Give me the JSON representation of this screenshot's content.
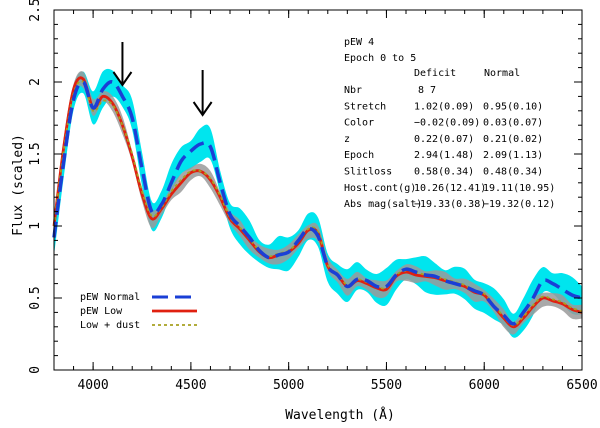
{
  "chart_data": {
    "type": "line",
    "title": "",
    "xlabel": "Wavelength (Å)",
    "ylabel": "Flux (scaled)",
    "xlim": [
      3800,
      6500
    ],
    "ylim": [
      0,
      2.5
    ],
    "x_ticks": [
      "4000",
      "4500",
      "5000",
      "5500",
      "6000",
      "6500"
    ],
    "y_ticks": [
      "0",
      "0.5",
      "1",
      "1.5",
      "2",
      "2.5"
    ],
    "arrow_wavelengths": [
      4150,
      4560
    ],
    "info": {
      "title": "pEW 4",
      "epoch": "Epoch 0 to 5",
      "col_deficit": "Deficit",
      "col_normal": "Normal",
      "rows": [
        {
          "label": "Nbr",
          "deficit": "8",
          "normal": "7"
        },
        {
          "label": "Stretch",
          "deficit": "1.02(0.09)",
          "normal": "0.95(0.10)"
        },
        {
          "label": "Color",
          "deficit": "−0.02(0.09)",
          "normal": "0.03(0.07)"
        },
        {
          "label": "z",
          "deficit": "0.22(0.07)",
          "normal": "0.21(0.02)"
        },
        {
          "label": "Epoch",
          "deficit": "2.94(1.48)",
          "normal": "2.09(1.13)"
        },
        {
          "label": "Slitloss",
          "deficit": "0.58(0.34)",
          "normal": "0.48(0.34)"
        },
        {
          "label": "Host.cont(g)",
          "deficit": "10.26(12.41)",
          "normal": "19.11(10.95)"
        },
        {
          "label": "Abs mag(salt)",
          "deficit": "−19.33(0.38)",
          "normal": "−19.32(0.12)"
        }
      ]
    },
    "legend": [
      "pEW Normal",
      "pEW Low",
      "Low + dust"
    ],
    "colors": {
      "normal": "#1a3fd6",
      "low": "#e02010",
      "dust": "#a8a020",
      "band_normal": "#00e5ee",
      "band_low": "#9a9a9a"
    },
    "x": [
      3800,
      3850,
      3900,
      3950,
      4000,
      4050,
      4100,
      4150,
      4200,
      4250,
      4300,
      4350,
      4400,
      4450,
      4500,
      4550,
      4600,
      4650,
      4700,
      4750,
      4800,
      4850,
      4900,
      4950,
      5000,
      5050,
      5100,
      5150,
      5200,
      5250,
      5300,
      5350,
      5400,
      5450,
      5500,
      5550,
      5600,
      5650,
      5700,
      5750,
      5800,
      5850,
      5900,
      5950,
      6000,
      6050,
      6100,
      6150,
      6200,
      6250,
      6300,
      6350,
      6400,
      6450,
      6500
    ],
    "series": [
      {
        "name": "pEW Normal",
        "values": [
          0.92,
          1.45,
          1.88,
          2.0,
          1.82,
          1.95,
          2.0,
          1.9,
          1.75,
          1.4,
          1.1,
          1.15,
          1.3,
          1.45,
          1.52,
          1.57,
          1.55,
          1.3,
          1.08,
          1.0,
          0.92,
          0.83,
          0.78,
          0.8,
          0.82,
          0.9,
          0.98,
          0.93,
          0.72,
          0.66,
          0.58,
          0.63,
          0.62,
          0.58,
          0.58,
          0.66,
          0.7,
          0.68,
          0.66,
          0.65,
          0.62,
          0.6,
          0.58,
          0.55,
          0.52,
          0.44,
          0.38,
          0.32,
          0.4,
          0.5,
          0.62,
          0.6,
          0.56,
          0.52,
          0.5
        ]
      },
      {
        "name": "pEW Low",
        "values": [
          1.0,
          1.55,
          1.95,
          2.02,
          1.82,
          1.9,
          1.85,
          1.7,
          1.48,
          1.22,
          1.05,
          1.12,
          1.22,
          1.3,
          1.37,
          1.38,
          1.32,
          1.2,
          1.05,
          0.98,
          0.9,
          0.82,
          0.78,
          0.8,
          0.82,
          0.88,
          0.97,
          0.95,
          0.72,
          0.66,
          0.58,
          0.62,
          0.6,
          0.57,
          0.56,
          0.65,
          0.68,
          0.66,
          0.65,
          0.64,
          0.62,
          0.6,
          0.58,
          0.54,
          0.52,
          0.44,
          0.36,
          0.3,
          0.36,
          0.44,
          0.5,
          0.48,
          0.46,
          0.42,
          0.4
        ]
      },
      {
        "name": "Low + dust",
        "values": [
          1.0,
          1.53,
          1.92,
          2.0,
          1.8,
          1.87,
          1.84,
          1.7,
          1.5,
          1.24,
          1.07,
          1.13,
          1.24,
          1.32,
          1.38,
          1.38,
          1.33,
          1.21,
          1.06,
          0.99,
          0.91,
          0.83,
          0.79,
          0.81,
          0.83,
          0.89,
          0.98,
          0.96,
          0.73,
          0.67,
          0.59,
          0.63,
          0.61,
          0.58,
          0.57,
          0.66,
          0.69,
          0.68,
          0.66,
          0.65,
          0.63,
          0.61,
          0.59,
          0.55,
          0.53,
          0.45,
          0.37,
          0.31,
          0.37,
          0.45,
          0.51,
          0.49,
          0.47,
          0.43,
          0.41
        ]
      }
    ]
  }
}
